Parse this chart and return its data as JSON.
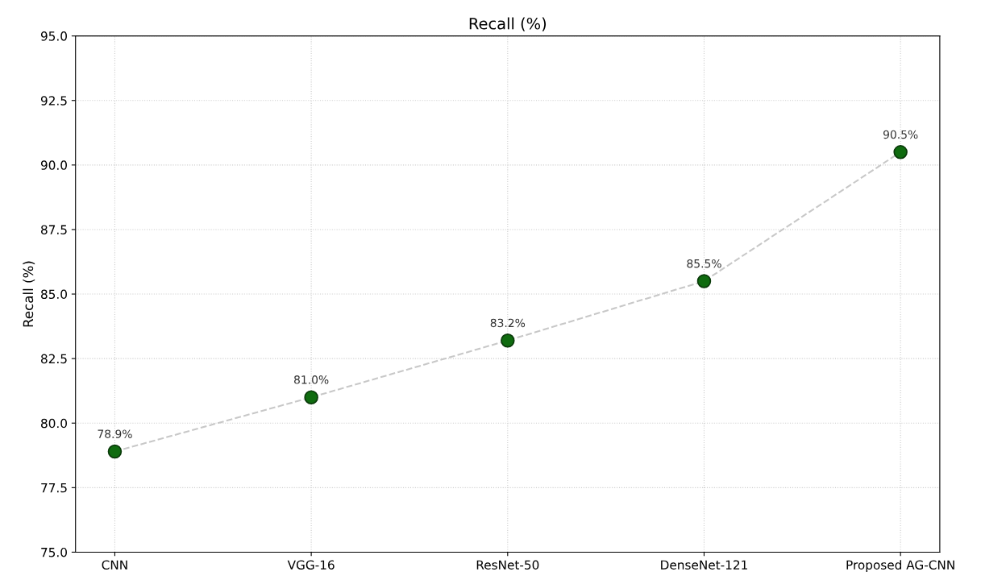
{
  "chart_data": {
    "type": "line",
    "title": "Recall (%)",
    "ylabel": "Recall (%)",
    "categories": [
      "CNN",
      "VGG-16",
      "ResNet-50",
      "DenseNet-121",
      "Proposed AG-CNN"
    ],
    "series": [
      {
        "color": "#c8c8c8",
        "line_style": "dashed",
        "values": [
          78.9,
          81.0,
          83.2,
          85.5,
          90.5
        ]
      },
      {
        "type": "scatter",
        "color": "#0f6b0f",
        "marker": "circle",
        "values": [
          78.9,
          81.0,
          83.2,
          85.5,
          90.5
        ],
        "value_labels": [
          "78.9%",
          "81.0%",
          "83.2%",
          "85.5%",
          "90.5%"
        ]
      }
    ],
    "ylim": [
      75.0,
      95.0
    ],
    "yticks": [
      {
        "value": 75,
        "label": "75.0"
      },
      {
        "value": 77.5,
        "label": "77.5"
      },
      {
        "value": 80,
        "label": "80.0"
      },
      {
        "value": 82.5,
        "label": "82.5"
      },
      {
        "value": 85,
        "label": "85.0"
      },
      {
        "value": 87.5,
        "label": "87.5"
      },
      {
        "value": 90,
        "label": "90.0"
      },
      {
        "value": 92.5,
        "label": "92.5"
      },
      {
        "value": 95,
        "label": "95.0"
      }
    ],
    "grid": true,
    "legend": false
  }
}
